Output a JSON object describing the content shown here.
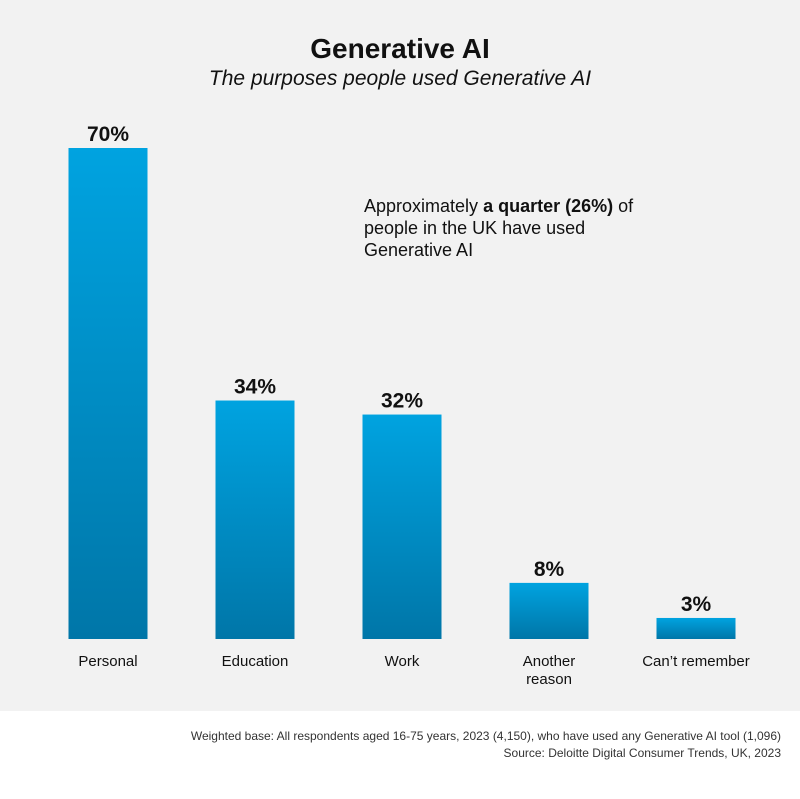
{
  "title": "Generative AI",
  "subtitle": "The purposes people used Generative AI",
  "annotation": {
    "pre": "Approximately ",
    "bold": "a quarter (26%)",
    "post": " of people in the UK have used Generative AI"
  },
  "footer": {
    "base": "Weighted base: All respondents aged 16-75 years, 2023 (4,150), who have used any Generative AI tool (1,096)",
    "source": "Source: Deloitte Digital Consumer Trends, UK, 2023"
  },
  "colors": {
    "panel": "#f2f2f2",
    "bar_top": "#00a3e0",
    "bar_bottom": "#0076a8",
    "text": "#111111"
  },
  "chart_data": {
    "type": "bar",
    "title": "Generative AI",
    "subtitle": "The purposes people used Generative AI",
    "categories": [
      "Personal",
      "Education",
      "Work",
      "Another reason",
      "Can’t remember"
    ],
    "category_lines": [
      [
        "Personal"
      ],
      [
        "Education"
      ],
      [
        "Work"
      ],
      [
        "Another",
        "reason"
      ],
      [
        "Can’t remember"
      ]
    ],
    "values": [
      70,
      34,
      32,
      8,
      3
    ],
    "value_labels": [
      "70%",
      "34%",
      "32%",
      "8%",
      "3%"
    ],
    "unit": "%",
    "ylim": [
      0,
      70
    ],
    "grid": false,
    "legend": "none"
  }
}
